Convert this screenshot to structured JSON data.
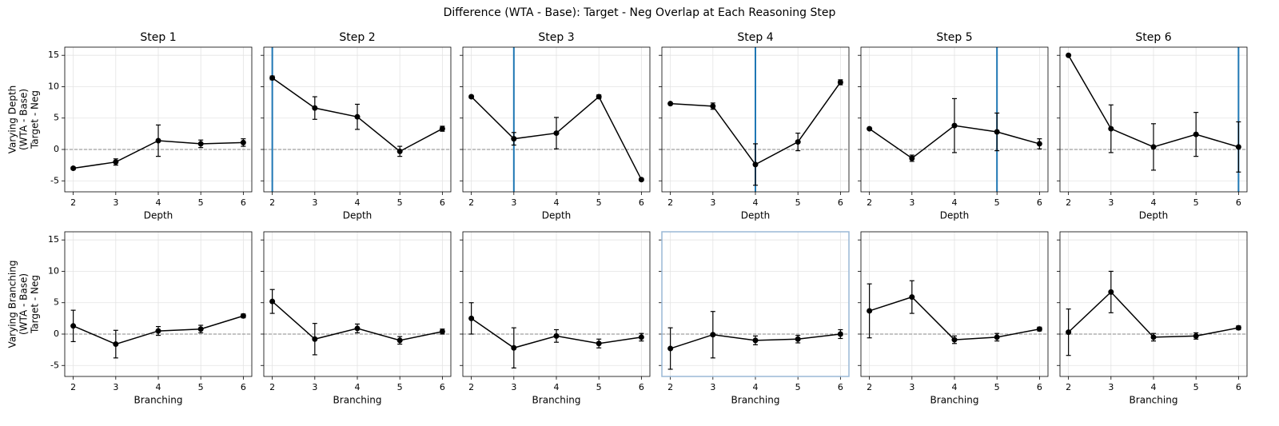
{
  "title": "Difference (WTA - Base): Target - Neg Overlap at Each Reasoning Step",
  "chart_data": [
    {
      "type": "line",
      "title": "Step 1",
      "xlabel": "Depth",
      "ylabel": [
        "Varying Depth",
        "(WTA - Base)",
        "Target - Neg"
      ],
      "x": [
        2,
        3,
        4,
        5,
        6
      ],
      "values": [
        -3.0,
        -2.0,
        1.4,
        0.9,
        1.1
      ],
      "errors": [
        0.2,
        0.5,
        2.5,
        0.6,
        0.6
      ],
      "color": "#000000",
      "xlim": [
        1.8,
        6.2
      ],
      "ylim": [
        -6.75,
        16.3
      ],
      "xticks": [
        2,
        3,
        4,
        5,
        6
      ],
      "yticks": [
        -5,
        0,
        5,
        10,
        15
      ],
      "grid": true,
      "reference_line": 0
    },
    {
      "type": "line",
      "title": "Step 2",
      "xlabel": "Depth",
      "x": [
        2,
        3,
        4,
        5,
        6
      ],
      "values": [
        11.4,
        6.6,
        5.2,
        -0.3,
        3.3
      ],
      "errors": [
        0.3,
        1.8,
        2.0,
        0.8,
        0.4
      ],
      "color": "#000000",
      "xlim": [
        1.8,
        6.2
      ],
      "ylim": [
        -6.75,
        16.3
      ],
      "xticks": [
        2,
        3,
        4,
        5,
        6
      ],
      "yticks": [
        -5,
        0,
        5,
        10,
        15
      ],
      "grid": true,
      "reference_line": 0,
      "vline": 2,
      "vline_color": "#1f77b4"
    },
    {
      "type": "line",
      "title": "Step 3",
      "xlabel": "Depth",
      "x": [
        2,
        3,
        4,
        5,
        6
      ],
      "values": [
        8.4,
        1.7,
        2.6,
        8.4,
        -4.8
      ],
      "errors": [
        0.2,
        1.0,
        2.5,
        0.3,
        0.2
      ],
      "color": "#000000",
      "xlim": [
        1.8,
        6.2
      ],
      "ylim": [
        -6.75,
        16.3
      ],
      "xticks": [
        2,
        3,
        4,
        5,
        6
      ],
      "yticks": [
        -5,
        0,
        5,
        10,
        15
      ],
      "grid": true,
      "reference_line": 0,
      "vline": 3,
      "vline_color": "#1f77b4"
    },
    {
      "type": "line",
      "title": "Step 4",
      "xlabel": "Depth",
      "x": [
        2,
        3,
        4,
        5,
        6
      ],
      "values": [
        7.3,
        6.9,
        -2.4,
        1.2,
        10.7
      ],
      "errors": [
        0.1,
        0.5,
        3.3,
        1.4,
        0.4
      ],
      "color": "#000000",
      "xlim": [
        1.8,
        6.2
      ],
      "ylim": [
        -6.75,
        16.3
      ],
      "xticks": [
        2,
        3,
        4,
        5,
        6
      ],
      "yticks": [
        -5,
        0,
        5,
        10,
        15
      ],
      "grid": true,
      "reference_line": 0,
      "vline": 4,
      "vline_color": "#1f77b4"
    },
    {
      "type": "line",
      "title": "Step 5",
      "xlabel": "Depth",
      "x": [
        2,
        3,
        4,
        5,
        6
      ],
      "values": [
        3.3,
        -1.4,
        3.8,
        2.8,
        0.9
      ],
      "errors": [
        0.1,
        0.5,
        4.3,
        3.0,
        0.8
      ],
      "color": "#000000",
      "xlim": [
        1.8,
        6.2
      ],
      "ylim": [
        -6.75,
        16.3
      ],
      "xticks": [
        2,
        3,
        4,
        5,
        6
      ],
      "yticks": [
        -5,
        0,
        5,
        10,
        15
      ],
      "grid": true,
      "reference_line": 0,
      "vline": 5,
      "vline_color": "#1f77b4"
    },
    {
      "type": "line",
      "title": "Step 6",
      "xlabel": "Depth",
      "x": [
        2,
        3,
        4,
        5,
        6
      ],
      "values": [
        15.0,
        3.3,
        0.4,
        2.4,
        0.4
      ],
      "errors": [
        0.1,
        3.8,
        3.7,
        3.5,
        4.0
      ],
      "color": "#000000",
      "xlim": [
        1.8,
        6.2
      ],
      "ylim": [
        -6.75,
        16.3
      ],
      "xticks": [
        2,
        3,
        4,
        5,
        6
      ],
      "yticks": [
        -5,
        0,
        5,
        10,
        15
      ],
      "grid": true,
      "reference_line": 0,
      "vline": 6,
      "vline_color": "#1f77b4"
    },
    {
      "type": "line",
      "xlabel": "Branching",
      "ylabel": [
        "Varying Branching",
        "(WTA - Base)",
        "Target - Neg"
      ],
      "x": [
        2,
        3,
        4,
        5,
        6
      ],
      "values": [
        1.3,
        -1.6,
        0.5,
        0.8,
        2.9
      ],
      "errors": [
        2.5,
        2.2,
        0.7,
        0.6,
        0.3
      ],
      "color": "#000000",
      "xlim": [
        1.8,
        6.2
      ],
      "ylim": [
        -6.75,
        16.3
      ],
      "xticks": [
        2,
        3,
        4,
        5,
        6
      ],
      "yticks": [
        -5,
        0,
        5,
        10,
        15
      ],
      "grid": true,
      "reference_line": 0
    },
    {
      "type": "line",
      "xlabel": "Branching",
      "x": [
        2,
        3,
        4,
        5,
        6
      ],
      "values": [
        5.2,
        -0.8,
        0.9,
        -1.0,
        0.4
      ],
      "errors": [
        1.9,
        2.5,
        0.7,
        0.6,
        0.4
      ],
      "color": "#000000",
      "xlim": [
        1.8,
        6.2
      ],
      "ylim": [
        -6.75,
        16.3
      ],
      "xticks": [
        2,
        3,
        4,
        5,
        6
      ],
      "yticks": [
        -5,
        0,
        5,
        10,
        15
      ],
      "grid": true,
      "reference_line": 0
    },
    {
      "type": "line",
      "xlabel": "Branching",
      "x": [
        2,
        3,
        4,
        5,
        6
      ],
      "values": [
        2.5,
        -2.2,
        -0.3,
        -1.5,
        -0.5
      ],
      "errors": [
        2.5,
        3.2,
        1.0,
        0.7,
        0.6
      ],
      "color": "#000000",
      "xlim": [
        1.8,
        6.2
      ],
      "ylim": [
        -6.75,
        16.3
      ],
      "xticks": [
        2,
        3,
        4,
        5,
        6
      ],
      "yticks": [
        -5,
        0,
        5,
        10,
        15
      ],
      "grid": true,
      "reference_line": 0
    },
    {
      "type": "line",
      "xlabel": "Branching",
      "x": [
        2,
        3,
        4,
        5,
        6
      ],
      "values": [
        -2.3,
        -0.1,
        -1.0,
        -0.8,
        0.0
      ],
      "errors": [
        3.3,
        3.7,
        0.7,
        0.6,
        0.7
      ],
      "color": "#000000",
      "xlim": [
        1.8,
        6.2
      ],
      "ylim": [
        -6.75,
        16.3
      ],
      "xticks": [
        2,
        3,
        4,
        5,
        6
      ],
      "yticks": [
        -5,
        0,
        5,
        10,
        15
      ],
      "grid": true,
      "reference_line": 0,
      "frame_color": "#9ab8d6"
    },
    {
      "type": "line",
      "xlabel": "Branching",
      "x": [
        2,
        3,
        4,
        5,
        6
      ],
      "values": [
        3.7,
        5.9,
        -0.9,
        -0.5,
        0.8
      ],
      "errors": [
        4.3,
        2.6,
        0.6,
        0.6,
        0.3
      ],
      "color": "#000000",
      "xlim": [
        1.8,
        6.2
      ],
      "ylim": [
        -6.75,
        16.3
      ],
      "xticks": [
        2,
        3,
        4,
        5,
        6
      ],
      "yticks": [
        -5,
        0,
        5,
        10,
        15
      ],
      "grid": true,
      "reference_line": 0
    },
    {
      "type": "line",
      "xlabel": "Branching",
      "x": [
        2,
        3,
        4,
        5,
        6
      ],
      "values": [
        0.3,
        6.7,
        -0.5,
        -0.3,
        1.0
      ],
      "errors": [
        3.7,
        3.3,
        0.6,
        0.5,
        0.3
      ],
      "color": "#000000",
      "xlim": [
        1.8,
        6.2
      ],
      "ylim": [
        -6.75,
        16.3
      ],
      "xticks": [
        2,
        3,
        4,
        5,
        6
      ],
      "yticks": [
        -5,
        0,
        5,
        10,
        15
      ],
      "grid": true,
      "reference_line": 0
    }
  ]
}
